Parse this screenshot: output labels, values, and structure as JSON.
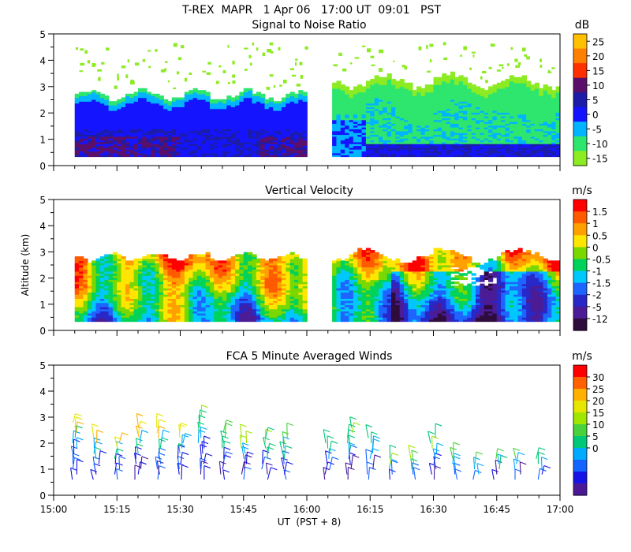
{
  "figure": {
    "title": "T-REX  MAPR   1 Apr 06   17:00 UT  09:01   PST",
    "shared_ylabel": "Altitude (km)",
    "shared_xlabel": "UT  (PST + 8)",
    "x_tick_labels": [
      "15:00",
      "15:15",
      "15:30",
      "15:45",
      "16:00",
      "16:15",
      "16:30",
      "16:45",
      "17:00"
    ],
    "y_tick_labels": [
      "0",
      "1",
      "2",
      "3",
      "4",
      "5"
    ]
  },
  "chart_data": [
    {
      "type": "heatmap",
      "title": "Signal to Noise Ratio",
      "units": "dB",
      "xlim": [
        "15:00",
        "17:00"
      ],
      "ylim": [
        0,
        5
      ],
      "data_gap": [
        "16:00",
        "16:05"
      ],
      "colorbar_ticks": [
        25,
        20,
        15,
        10,
        5,
        0,
        -5,
        -10,
        -15
      ],
      "colorbar_colors": [
        "#ffc000",
        "#ff8000",
        "#ff3000",
        "#5a106a",
        "#1c1ca8",
        "#1414ff",
        "#00b4ff",
        "#2ee66e",
        "#8ceb22"
      ]
    },
    {
      "type": "heatmap",
      "title": "Vertical Velocity",
      "units": "m/s",
      "xlim": [
        "15:00",
        "17:00"
      ],
      "ylim": [
        0,
        5
      ],
      "data_gap": [
        "16:00",
        "16:05"
      ],
      "colorbar_ticks": [
        "1.5",
        "1",
        "0.5",
        "0",
        "-0.5",
        "-1",
        "-1.5",
        "-2",
        "-5",
        "-12"
      ],
      "colorbar_colors": [
        "#ff0000",
        "#ff5a00",
        "#ffa000",
        "#ffe600",
        "#7ad800",
        "#00d25a",
        "#00c8ff",
        "#1e64ff",
        "#2828c8",
        "#4b1c96",
        "#2e0c3c"
      ]
    },
    {
      "type": "scatter",
      "title": "FCA 5 Minute Averaged Winds",
      "units": "m/s",
      "xlim": [
        "15:00",
        "17:00"
      ],
      "ylim": [
        0,
        5
      ],
      "colorbar_ticks": [
        30,
        25,
        20,
        15,
        10,
        5,
        0
      ],
      "colorbar_colors": [
        "#ff0000",
        "#ff6000",
        "#ffb000",
        "#e6e600",
        "#a0e600",
        "#4ad23c",
        "#00c878",
        "#00aaff",
        "#1464ff",
        "#1414e6",
        "#4a1a96"
      ],
      "profile_times": [
        "15:05",
        "15:10",
        "15:15",
        "15:20",
        "15:25",
        "15:30",
        "15:35",
        "15:40",
        "15:45",
        "15:50",
        "15:55",
        "16:05",
        "16:10",
        "16:15",
        "16:20",
        "16:25",
        "16:30",
        "16:35",
        "16:40",
        "16:45",
        "16:50",
        "16:55"
      ],
      "heights_km": [
        0.6,
        0.8,
        1.0,
        1.2,
        1.4,
        1.6,
        1.8,
        2.0,
        2.2,
        2.4,
        2.6,
        2.8,
        3.0
      ],
      "top_km": [
        2.8,
        2.3,
        2.1,
        2.6,
        2.6,
        2.5,
        3.1,
        2.4,
        2.2,
        2.2,
        2.3,
        2.0,
        2.6,
        2.3,
        1.4,
        1.4,
        2.2,
        1.6,
        1.3,
        1.5,
        1.5,
        1.5
      ]
    }
  ]
}
